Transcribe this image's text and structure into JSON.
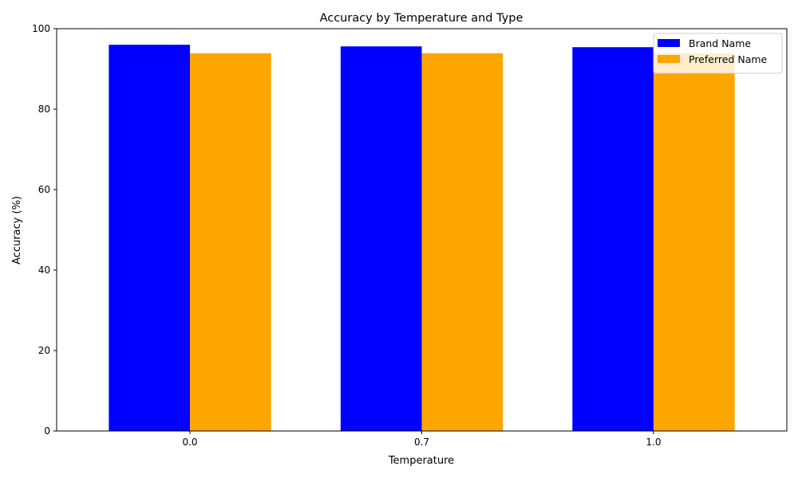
{
  "chart_data": {
    "type": "bar",
    "title": "Accuracy by Temperature and Type",
    "xlabel": "Temperature",
    "ylabel": "Accuracy (%)",
    "categories": [
      "0.0",
      "0.7",
      "1.0"
    ],
    "ylim": [
      0,
      100
    ],
    "yticks": [
      0,
      20,
      40,
      60,
      80,
      100
    ],
    "grid": false,
    "legend_position": "top-right",
    "series": [
      {
        "name": "Brand Name",
        "color": "#0000ff",
        "values": [
          96.0,
          95.6,
          95.4
        ]
      },
      {
        "name": "Preferred Name",
        "color": "#ffa500",
        "values": [
          93.9,
          93.9,
          93.9
        ]
      }
    ]
  }
}
